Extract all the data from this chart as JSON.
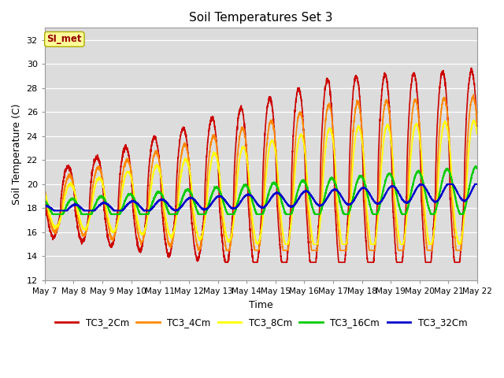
{
  "title": "Soil Temperatures Set 3",
  "xlabel": "Time",
  "ylabel": "Soil Temperature (C)",
  "ylim": [
    12,
    33
  ],
  "yticks": [
    12,
    14,
    16,
    18,
    20,
    22,
    24,
    26,
    28,
    30,
    32
  ],
  "plot_bg_color": "#dcdcdc",
  "series_colors": [
    "#cc0000",
    "#ff8800",
    "#ffff00",
    "#00cc00",
    "#0000cc"
  ],
  "series_labels": [
    "TC3_2Cm",
    "TC3_4Cm",
    "TC3_8Cm",
    "TC3_16Cm",
    "TC3_32Cm"
  ],
  "x_tick_days": [
    7,
    8,
    9,
    10,
    11,
    12,
    13,
    14,
    15,
    16,
    17,
    18,
    19,
    20,
    21,
    22
  ],
  "watermark_text": "SI_met",
  "watermark_color": "#990000",
  "watermark_bg": "#ffff99",
  "watermark_border": "#aaaa00",
  "n_points": 3600
}
